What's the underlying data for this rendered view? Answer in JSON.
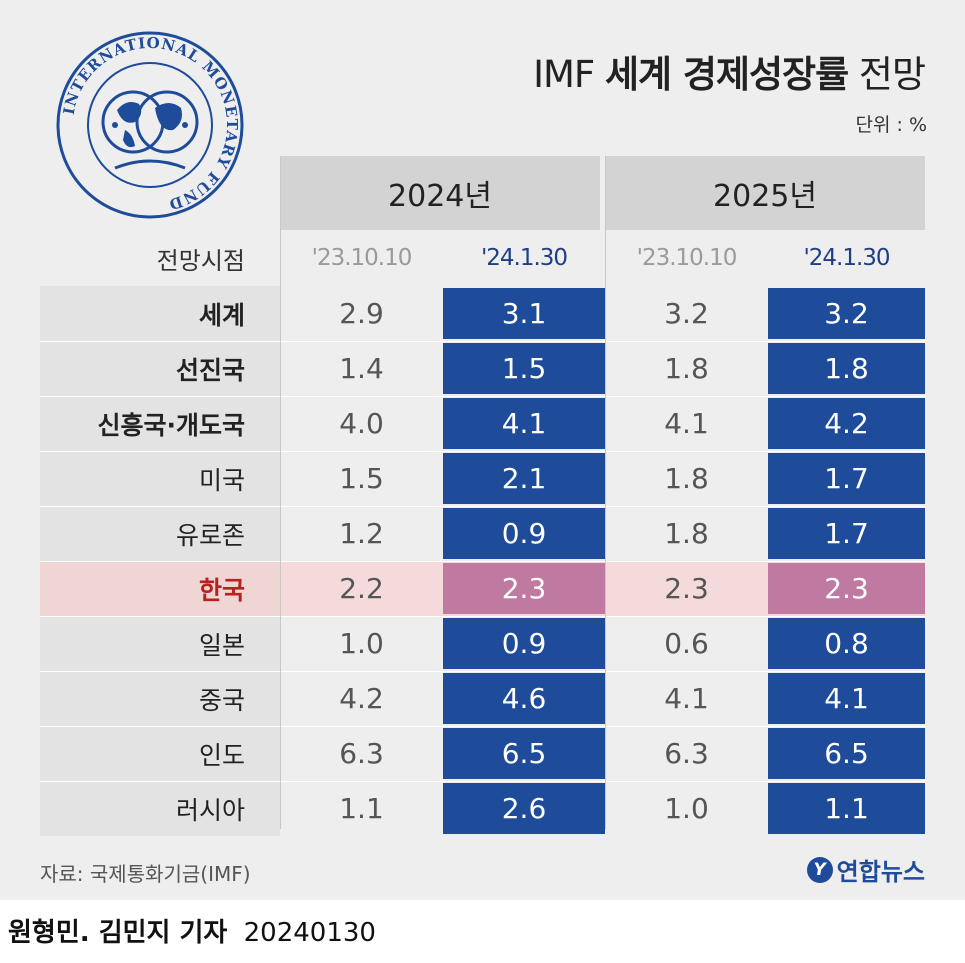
{
  "title": {
    "prefix": "IMF",
    "bold": "세계 경제성장률",
    "suffix": "전망"
  },
  "unit": "단위 : %",
  "logo": {
    "icon": "imf-seal-icon",
    "ring_text": "INTERNATIONAL MONETARY FUND"
  },
  "timing_label": "전망시점",
  "years": [
    "2024년",
    "2025년"
  ],
  "forecast_dates": [
    "'23.10.10",
    "'24.1.30"
  ],
  "colors": {
    "revised": "#1e4b9a",
    "korea_revised": "#c07aa2",
    "korea_label": "#b5221f",
    "highlight_row": "#f4dada"
  },
  "chart_data": {
    "type": "table",
    "title": "IMF 세계 경제성장률 전망",
    "unit": "%",
    "columns": [
      {
        "year": "2024년",
        "forecast": "'23.10.10"
      },
      {
        "year": "2024년",
        "forecast": "'24.1.30"
      },
      {
        "year": "2025년",
        "forecast": "'23.10.10"
      },
      {
        "year": "2025년",
        "forecast": "'24.1.30"
      }
    ],
    "rows": [
      {
        "name": "세계",
        "bold": true,
        "values": [
          "2.9",
          "3.1",
          "3.2",
          "3.2"
        ]
      },
      {
        "name": "선진국",
        "bold": true,
        "values": [
          "1.4",
          "1.5",
          "1.8",
          "1.8"
        ]
      },
      {
        "name": "신흥국·개도국",
        "bold": true,
        "values": [
          "4.0",
          "4.1",
          "4.1",
          "4.2"
        ]
      },
      {
        "name": "미국",
        "bold": false,
        "values": [
          "1.5",
          "2.1",
          "1.8",
          "1.7"
        ]
      },
      {
        "name": "유로존",
        "bold": false,
        "values": [
          "1.2",
          "0.9",
          "1.8",
          "1.7"
        ]
      },
      {
        "name": "한국",
        "bold": false,
        "highlight": true,
        "values": [
          "2.2",
          "2.3",
          "2.3",
          "2.3"
        ]
      },
      {
        "name": "일본",
        "bold": false,
        "values": [
          "1.0",
          "0.9",
          "0.6",
          "0.8"
        ]
      },
      {
        "name": "중국",
        "bold": false,
        "values": [
          "4.2",
          "4.6",
          "4.1",
          "4.1"
        ]
      },
      {
        "name": "인도",
        "bold": false,
        "values": [
          "6.3",
          "6.5",
          "6.3",
          "6.5"
        ]
      },
      {
        "name": "러시아",
        "bold": false,
        "values": [
          "1.1",
          "2.6",
          "1.0",
          "1.1"
        ]
      }
    ]
  },
  "source": "자료: 국제통화기금(IMF)",
  "agency": {
    "name": "연합뉴스",
    "icon_letter": "Y"
  },
  "credit": {
    "authors": "원형민. 김민지 기자",
    "date": "20240130"
  }
}
